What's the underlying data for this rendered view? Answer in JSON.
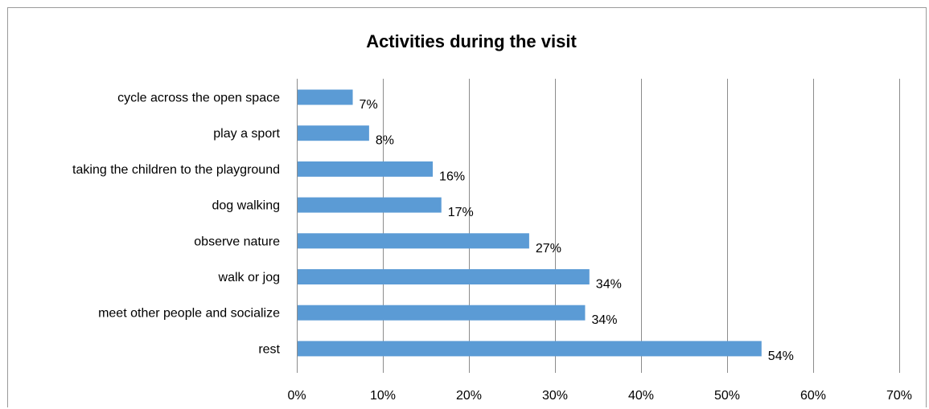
{
  "chart_data": {
    "type": "bar",
    "orientation": "horizontal",
    "title": "Activities during the visit",
    "xlabel": "",
    "ylabel": "",
    "categories": [
      "cycle across the open space",
      "play a sport",
      "taking the children to the playground",
      "dog walking",
      "observe nature",
      "walk or jog",
      "meet other people and socialize",
      "rest"
    ],
    "values": [
      6.5,
      8.4,
      15.8,
      16.8,
      27.0,
      34.0,
      33.5,
      54.0
    ],
    "data_labels": [
      "7%",
      "8%",
      "16%",
      "17%",
      "27%",
      "34%",
      "34%",
      "54%"
    ],
    "xlim": [
      0,
      70
    ],
    "x_ticks": [
      0,
      10,
      20,
      30,
      40,
      50,
      60,
      70
    ],
    "x_tick_labels": [
      "0%",
      "10%",
      "20%",
      "30%",
      "40%",
      "50%",
      "60%",
      "70%"
    ],
    "grid": "vertical major gridlines",
    "legend": "none",
    "colors": {
      "bar": "#5b9bd5",
      "gridline": "#8c8c8c",
      "axis": "#8c8c8c",
      "frame": "#9a9a9a"
    }
  }
}
